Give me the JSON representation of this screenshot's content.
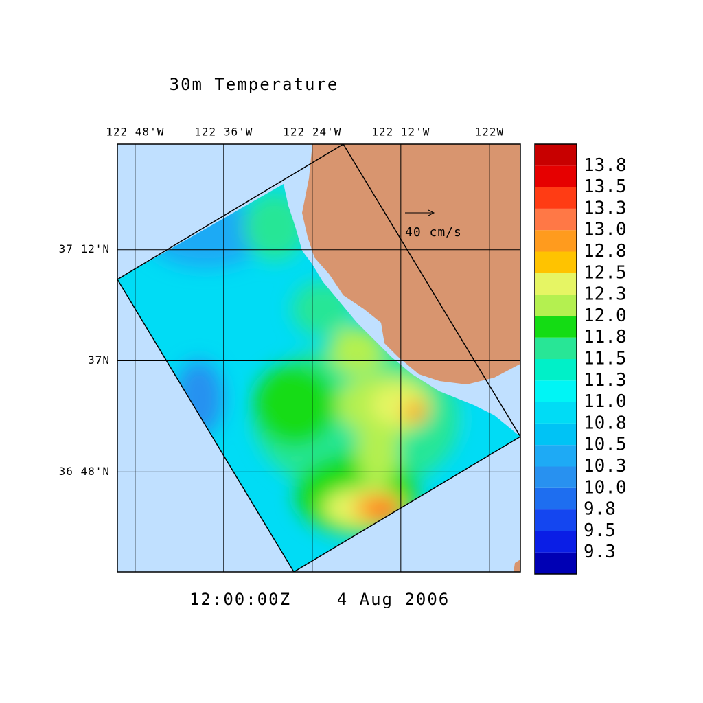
{
  "title": "30m Temperature",
  "time": "12:00:00Z",
  "date": "4 Aug 2006",
  "reference_vector": {
    "label": "40 cm/s"
  },
  "map": {
    "xlim": [
      -122.84,
      -121.93
    ],
    "ylim": [
      36.62,
      37.39
    ],
    "xticks": [
      {
        "value": -122.8,
        "label": "122 48'W"
      },
      {
        "value": -122.6,
        "label": "122 36'W"
      },
      {
        "value": -122.4,
        "label": "122 24'W"
      },
      {
        "value": -122.2,
        "label": "122 12'W"
      },
      {
        "value": -122.0,
        "label": "122W"
      }
    ],
    "yticks": [
      {
        "value": 37.2,
        "label": "37 12'N"
      },
      {
        "value": 37.0,
        "label": "37N"
      },
      {
        "value": 36.8,
        "label": "36 48'N"
      }
    ],
    "grid": true
  },
  "colorbar": {
    "levels": [
      9.3,
      9.5,
      9.8,
      {
        "value": 10,
        "label": "10.0"
      },
      10.3,
      10.5,
      10.8,
      {
        "value": 11,
        "label": "11.0"
      },
      11.3,
      11.5,
      11.8,
      {
        "value": 12,
        "label": "12.0"
      },
      12.3,
      12.5,
      12.8,
      {
        "value": 13,
        "label": "13.0"
      },
      13.3,
      13.5,
      13.8
    ],
    "colors": [
      "#0000b4",
      "#0a1ee6",
      "#1446f0",
      "#1e6ef0",
      "#2891f0",
      "#1eaaf5",
      "#00c3f5",
      "#00dcf5",
      "#00f5f5",
      "#00f0c8",
      "#28e696",
      "#14dc14",
      "#b4f050",
      "#e6f564",
      "#ffc300",
      "#ff9b1e",
      "#ff7846",
      "#ff3c14",
      "#e60000",
      "#c80000"
    ]
  }
}
